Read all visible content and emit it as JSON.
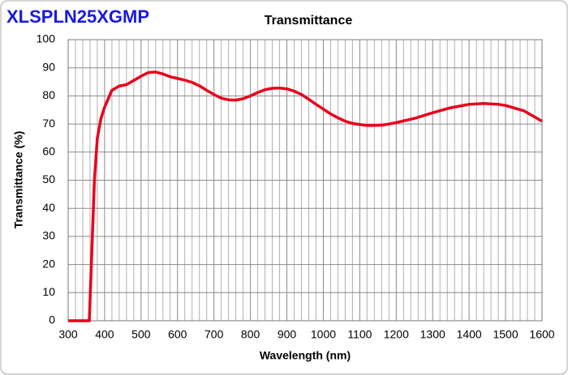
{
  "brand": "XLSPLN25XGMP",
  "chart_data": {
    "type": "line",
    "title": "Transmittance",
    "x_label": "Wavelength (nm)",
    "y_label": "Transmittance (%)",
    "xlim": [
      300,
      1600
    ],
    "xticks": [
      300,
      400,
      500,
      600,
      700,
      800,
      900,
      1000,
      1100,
      1200,
      1300,
      1400,
      1500,
      1600
    ],
    "ylim": [
      0,
      100
    ],
    "yticks": [
      0,
      10,
      20,
      30,
      40,
      50,
      60,
      70,
      80,
      90,
      100
    ],
    "grid": true,
    "series": [
      {
        "color": "#e8001c",
        "x": [
          300,
          358,
          365,
          372,
          380,
          390,
          400,
          410,
          420,
          440,
          460,
          480,
          500,
          520,
          540,
          560,
          580,
          600,
          620,
          640,
          660,
          680,
          700,
          720,
          740,
          760,
          780,
          800,
          820,
          840,
          860,
          880,
          900,
          920,
          940,
          960,
          980,
          1000,
          1020,
          1040,
          1060,
          1080,
          1100,
          1120,
          1140,
          1160,
          1180,
          1200,
          1250,
          1300,
          1350,
          1400,
          1440,
          1480,
          1500,
          1550,
          1600
        ],
        "values": [
          0,
          0,
          25,
          50,
          65,
          72,
          76,
          79,
          82,
          83.5,
          84,
          85.5,
          87,
          88.3,
          88.5,
          87.8,
          86.8,
          86.2,
          85.6,
          84.8,
          83.6,
          82,
          80.5,
          79.2,
          78.6,
          78.5,
          79,
          80,
          81.2,
          82.2,
          82.7,
          82.8,
          82.5,
          81.7,
          80.5,
          78.8,
          77,
          75.3,
          73.6,
          72.2,
          71,
          70.2,
          69.8,
          69.5,
          69.5,
          69.6,
          70,
          70.5,
          72,
          74,
          75.8,
          77,
          77.3,
          77,
          76.6,
          74.7,
          71
        ]
      }
    ]
  }
}
